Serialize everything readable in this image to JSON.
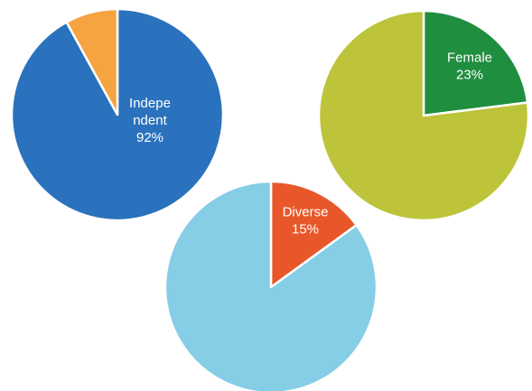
{
  "chart_data": [
    {
      "type": "pie",
      "title": "",
      "slices": [
        {
          "label": "Indepe ndent",
          "value": 92,
          "display_label": [
            "Indepe",
            "ndent"
          ],
          "display_value": "92%",
          "color": "#2a72bd"
        },
        {
          "label": "",
          "value": 8,
          "display_label": [],
          "display_value": "",
          "color": "#f6a341"
        }
      ]
    },
    {
      "type": "pie",
      "title": "",
      "slices": [
        {
          "label": "Female",
          "value": 23,
          "display_label": [
            "Female"
          ],
          "display_value": "23%",
          "color": "#1f8e3f"
        },
        {
          "label": "",
          "value": 77,
          "display_label": [],
          "display_value": "",
          "color": "#bec43a"
        }
      ]
    },
    {
      "type": "pie",
      "title": "",
      "slices": [
        {
          "label": "Diverse",
          "value": 15,
          "display_label": [
            "Diverse"
          ],
          "display_value": "15%",
          "color": "#e8572a"
        },
        {
          "label": "",
          "value": 85,
          "display_label": [],
          "display_value": "",
          "color": "#86cde6"
        }
      ]
    }
  ]
}
